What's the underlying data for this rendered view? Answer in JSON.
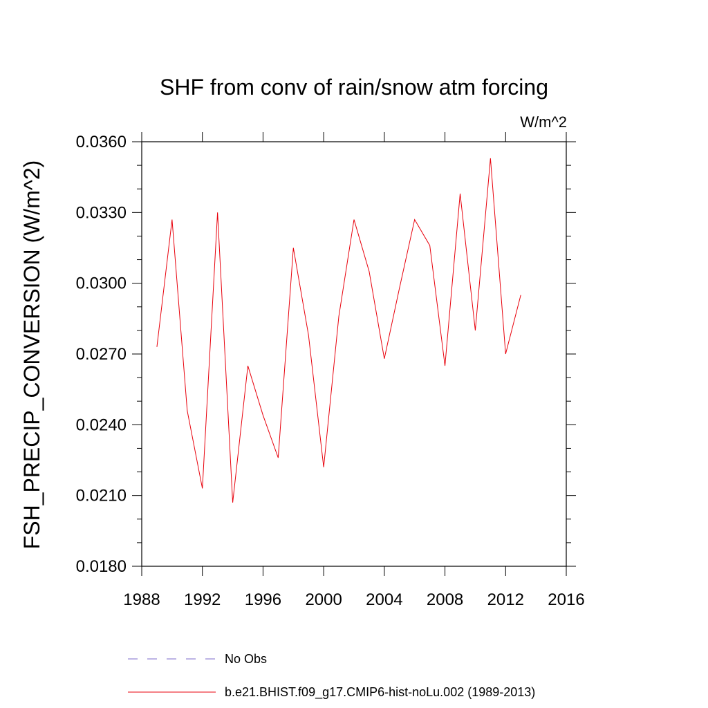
{
  "chart_data": {
    "type": "line",
    "title": "SHF from conv of rain/snow atm forcing",
    "units_label": "W/m^2",
    "xlabel": "",
    "ylabel": "FSH_PRECIP_CONVERSION  (W/m^2)",
    "xlim": [
      1988,
      2016
    ],
    "ylim": [
      0.018,
      0.036
    ],
    "xticks": [
      1988,
      1992,
      1996,
      2000,
      2004,
      2008,
      2012,
      2016
    ],
    "xtick_labels": [
      "1988",
      "1992",
      "1996",
      "2000",
      "2004",
      "2008",
      "2012",
      "2016"
    ],
    "yticks": [
      0.018,
      0.021,
      0.024,
      0.027,
      0.03,
      0.033,
      0.036
    ],
    "ytick_labels": [
      "0.0180",
      "0.0210",
      "0.0240",
      "0.0270",
      "0.0300",
      "0.0330",
      "0.0360"
    ],
    "grid": false,
    "series": [
      {
        "name": "b.e21.BHIST.f09_g17.CMIP6-hist-noLu.002 (1989-2013)",
        "color": "#e8000b",
        "x": [
          1989,
          1990,
          1991,
          1992,
          1993,
          1994,
          1995,
          1996,
          1997,
          1998,
          1999,
          2000,
          2001,
          2002,
          2003,
          2004,
          2005,
          2006,
          2007,
          2008,
          2009,
          2010,
          2011,
          2012,
          2013
        ],
        "y": [
          0.0273,
          0.0327,
          0.0246,
          0.0213,
          0.033,
          0.0207,
          0.0265,
          0.0244,
          0.0226,
          0.0315,
          0.0278,
          0.0222,
          0.0286,
          0.0327,
          0.0305,
          0.0268,
          0.0298,
          0.0327,
          0.0316,
          0.0265,
          0.0338,
          0.028,
          0.0353,
          0.027,
          0.0295
        ]
      }
    ],
    "legend": {
      "placement": "bottom",
      "entries": [
        {
          "label": "No Obs",
          "style": "dashed",
          "color": "#7b68c8"
        },
        {
          "label": "b.e21.BHIST.f09_g17.CMIP6-hist-noLu.002 (1989-2013)",
          "style": "solid",
          "color": "#e8000b"
        }
      ]
    }
  }
}
